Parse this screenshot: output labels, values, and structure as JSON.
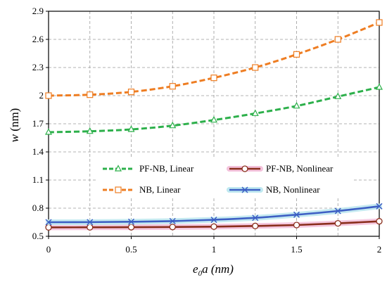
{
  "chart_data": {
    "type": "line",
    "title": "",
    "xlabel": {
      "base": "e",
      "sub": "0",
      "rest": "a (nm)"
    },
    "ylabel": {
      "italic": "w",
      "rest": " (nm)"
    },
    "xlim": [
      0,
      2
    ],
    "ylim": [
      0.5,
      2.9
    ],
    "x_ticks": [
      0,
      0.5,
      1,
      1.5,
      2
    ],
    "y_ticks": [
      0.5,
      0.8,
      1.1,
      1.4,
      1.7,
      2,
      2.3,
      2.6,
      2.9
    ],
    "x_tick_labels": [
      "0",
      "0.5",
      "1",
      "1.5",
      "2"
    ],
    "y_tick_labels": [
      "0.5",
      "0.8",
      "1.1",
      "1.4",
      "1.7",
      "2",
      "2.3",
      "2.6",
      "2.9"
    ],
    "grid": true,
    "legend_position": "lower-middle",
    "series": [
      {
        "name": "PF-NB, Linear",
        "color": "#2db04b",
        "dash": true,
        "marker": "triangle",
        "x": [
          0,
          0.25,
          0.5,
          0.75,
          1,
          1.25,
          1.5,
          1.75,
          2
        ],
        "values": [
          1.61,
          1.62,
          1.64,
          1.68,
          1.74,
          1.81,
          1.89,
          1.99,
          2.09
        ]
      },
      {
        "name": "PF-NB, Nonlinear",
        "color": "#8a2e1c",
        "glow": "#f4c2dc",
        "dash": false,
        "marker": "circle",
        "x": [
          0,
          0.25,
          0.5,
          0.75,
          1,
          1.25,
          1.5,
          1.75,
          2
        ],
        "values": [
          0.595,
          0.596,
          0.597,
          0.599,
          0.603,
          0.61,
          0.62,
          0.638,
          0.66
        ]
      },
      {
        "name": "NB, Linear",
        "color": "#ee7d22",
        "dash": true,
        "marker": "square",
        "x": [
          0,
          0.25,
          0.5,
          0.75,
          1,
          1.25,
          1.5,
          1.75,
          2
        ],
        "values": [
          2.0,
          2.01,
          2.04,
          2.1,
          2.19,
          2.3,
          2.44,
          2.6,
          2.78
        ]
      },
      {
        "name": "NB, Nonlinear",
        "color": "#3d5fc4",
        "glow": "#bfe8f0",
        "dash": false,
        "marker": "x",
        "x": [
          0,
          0.25,
          0.5,
          0.75,
          1,
          1.25,
          1.5,
          1.75,
          2
        ],
        "values": [
          0.65,
          0.651,
          0.655,
          0.662,
          0.676,
          0.697,
          0.73,
          0.77,
          0.82
        ]
      }
    ]
  }
}
